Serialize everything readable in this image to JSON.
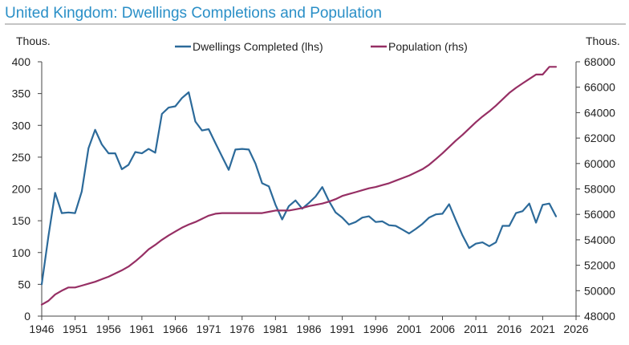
{
  "chart_data": {
    "type": "line",
    "title": "United Kingdom: Dwellings Completions and Population",
    "left_unit": "Thous.",
    "right_unit": "Thous.",
    "x_ticks": [
      "1946",
      "1951",
      "1956",
      "1961",
      "1966",
      "1971",
      "1976",
      "1981",
      "1986",
      "1991",
      "1996",
      "2001",
      "2006",
      "2011",
      "2016",
      "2021",
      "2026"
    ],
    "xlim": [
      1946,
      2026
    ],
    "y_left": {
      "ticks": [
        "0",
        "50",
        "100",
        "150",
        "200",
        "250",
        "300",
        "350",
        "400"
      ],
      "range": [
        0,
        400
      ]
    },
    "y_right": {
      "ticks": [
        "48000",
        "50000",
        "52000",
        "54000",
        "56000",
        "58000",
        "60000",
        "62000",
        "64000",
        "66000",
        "68000"
      ],
      "range": [
        48000,
        68000
      ]
    },
    "legend_position": "top-center",
    "series": [
      {
        "name": "Dwellings Completed (lhs)",
        "axis": "left",
        "color": "#2c6a9a",
        "x": [
          1946,
          1947,
          1948,
          1949,
          1950,
          1951,
          1952,
          1953,
          1954,
          1955,
          1956,
          1957,
          1958,
          1959,
          1960,
          1961,
          1962,
          1963,
          1964,
          1965,
          1966,
          1967,
          1968,
          1969,
          1970,
          1971,
          1972,
          1973,
          1974,
          1975,
          1976,
          1977,
          1978,
          1979,
          1980,
          1981,
          1982,
          1983,
          1984,
          1985,
          1986,
          1987,
          1988,
          1989,
          1990,
          1991,
          1992,
          1993,
          1994,
          1995,
          1996,
          1997,
          1998,
          1999,
          2000,
          2001,
          2002,
          2003,
          2004,
          2005,
          2006,
          2007,
          2008,
          2009,
          2010,
          2011,
          2012,
          2013,
          2014,
          2015,
          2016,
          2017,
          2018,
          2019,
          2020,
          2021,
          2022,
          2023
        ],
        "values": [
          50,
          125,
          194,
          162,
          163,
          162,
          196,
          264,
          293,
          270,
          256,
          256,
          231,
          238,
          258,
          256,
          263,
          257,
          318,
          328,
          330,
          343,
          352,
          306,
          292,
          294,
          272,
          251,
          230,
          262,
          263,
          262,
          240,
          209,
          204,
          175,
          152,
          173,
          182,
          169,
          178,
          188,
          203,
          181,
          163,
          155,
          144,
          148,
          155,
          157,
          148,
          149,
          143,
          142,
          136,
          130,
          137,
          145,
          155,
          160,
          161,
          176,
          151,
          127,
          107,
          114,
          116,
          110,
          116,
          142,
          142,
          162,
          165,
          177,
          147,
          175,
          177,
          157
        ]
      },
      {
        "name": "Population (rhs)",
        "axis": "right",
        "color": "#962f64",
        "x": [
          1946,
          1947,
          1948,
          1949,
          1950,
          1951,
          1952,
          1953,
          1954,
          1955,
          1956,
          1957,
          1958,
          1959,
          1960,
          1961,
          1962,
          1963,
          1964,
          1965,
          1966,
          1967,
          1968,
          1969,
          1970,
          1971,
          1972,
          1973,
          1974,
          1975,
          1976,
          1977,
          1978,
          1979,
          1980,
          1981,
          1982,
          1983,
          1984,
          1985,
          1986,
          1987,
          1988,
          1989,
          1990,
          1991,
          1992,
          1993,
          1994,
          1995,
          1996,
          1997,
          1998,
          1999,
          2000,
          2001,
          2002,
          2003,
          2004,
          2005,
          2006,
          2007,
          2008,
          2009,
          2010,
          2011,
          2012,
          2013,
          2014,
          2015,
          2016,
          2017,
          2018,
          2019,
          2020,
          2021,
          2022,
          2023
        ],
        "values": [
          48900,
          49200,
          49700,
          50000,
          50250,
          50250,
          50400,
          50550,
          50700,
          50900,
          51100,
          51350,
          51600,
          51900,
          52300,
          52750,
          53250,
          53600,
          54000,
          54350,
          54650,
          54950,
          55200,
          55400,
          55650,
          55900,
          56050,
          56100,
          56100,
          56100,
          56100,
          56100,
          56100,
          56100,
          56200,
          56300,
          56300,
          56300,
          56400,
          56500,
          56650,
          56750,
          56850,
          57000,
          57200,
          57450,
          57600,
          57750,
          57900,
          58050,
          58150,
          58300,
          58450,
          58650,
          58850,
          59050,
          59300,
          59550,
          59900,
          60350,
          60800,
          61300,
          61800,
          62250,
          62750,
          63250,
          63700,
          64100,
          64550,
          65050,
          65550,
          65950,
          66300,
          66650,
          67000,
          67000,
          67600,
          67600
        ]
      }
    ]
  }
}
